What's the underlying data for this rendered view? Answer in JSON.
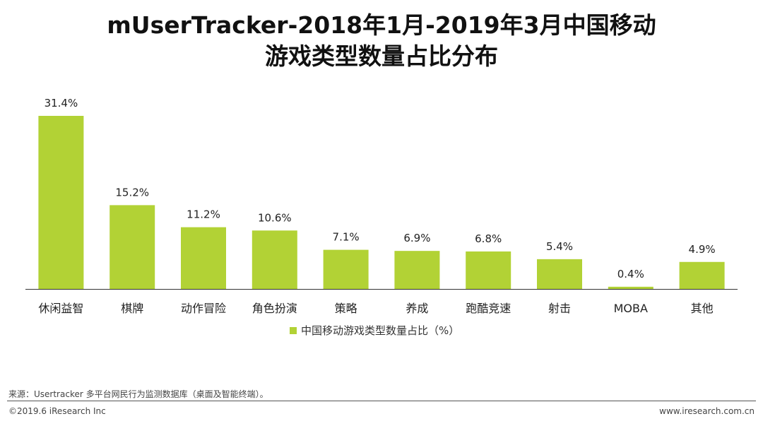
{
  "title_line1": "mUserTracker-2018年1月-2019年3月中国移动",
  "title_line2": "游戏类型数量占比分布",
  "chart_data": {
    "type": "bar",
    "categories": [
      "休闲益智",
      "棋牌",
      "动作冒险",
      "角色扮演",
      "策略",
      "养成",
      "跑酷竞速",
      "射击",
      "MOBA",
      "其他"
    ],
    "values": [
      31.4,
      15.2,
      11.2,
      10.6,
      7.1,
      6.9,
      6.8,
      5.4,
      0.4,
      4.9
    ],
    "data_labels": [
      "31.4%",
      "15.2%",
      "11.2%",
      "10.6%",
      "7.1%",
      "6.9%",
      "6.8%",
      "5.4%",
      "0.4%",
      "4.9%"
    ],
    "series": [
      {
        "name": "中国移动游戏类型数量占比（%）",
        "values": [
          31.4,
          15.2,
          11.2,
          10.6,
          7.1,
          6.9,
          6.8,
          5.4,
          0.4,
          4.9
        ]
      }
    ],
    "legend_position": "bottom",
    "bar_color": "#b2d235",
    "grid": false,
    "ylim": [
      0,
      31.4
    ]
  },
  "footer": {
    "source": "来源：Usertracker 多平台网民行为监测数据库（桌面及智能终端）。",
    "copyright": "©2019.6 iResearch Inc",
    "website": "www.iresearch.com.cn"
  }
}
